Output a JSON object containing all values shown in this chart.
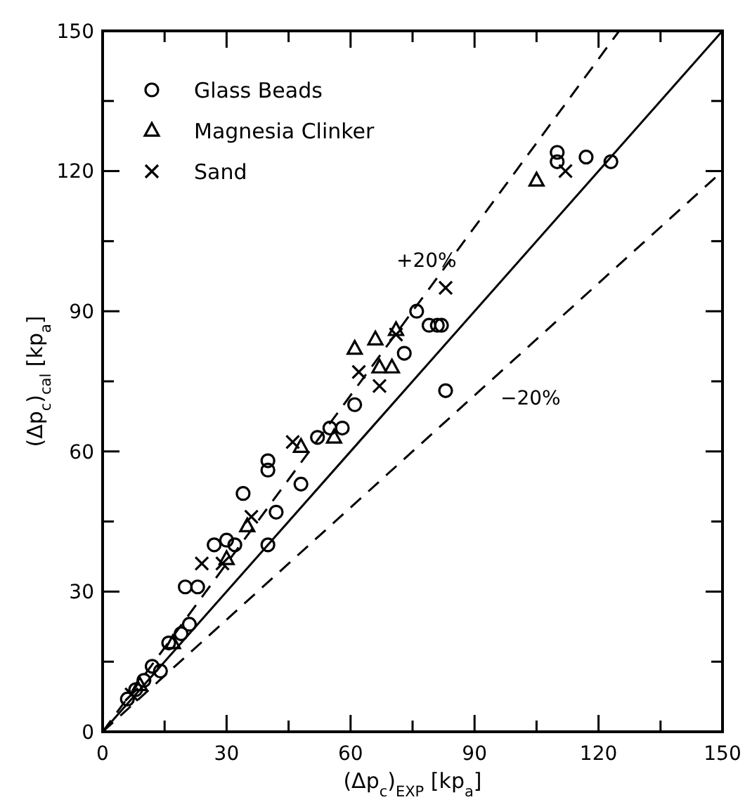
{
  "chart_data": {
    "type": "scatter",
    "xlabel": "(Δp$_{c}$)$_{EXP}$ [kp$_{a}$]",
    "ylabel": "(Δp$_{c}$)$_{cal}$ [kp$_{a}$]",
    "xlim": [
      0,
      150
    ],
    "ylim": [
      0,
      150
    ],
    "xticks": [
      0,
      {
        "value": 15,
        "label": null
      },
      30,
      {
        "value": 45,
        "label": null
      },
      60,
      {
        "value": 75,
        "label": null
      },
      90,
      {
        "value": 105,
        "label": null
      },
      120,
      {
        "value": 135,
        "label": null
      },
      150
    ],
    "yticks": [
      0,
      {
        "value": 15,
        "label": null
      },
      30,
      {
        "value": 45,
        "label": null
      },
      60,
      {
        "value": 75,
        "label": null
      },
      90,
      {
        "value": 105,
        "label": null
      },
      120,
      {
        "value": 135,
        "label": null
      },
      150
    ],
    "grid": false,
    "legend": "top left",
    "series": [
      {
        "name": "Glass Beads",
        "color": "#000000",
        "marker": "circle",
        "x": [
          6,
          8,
          10,
          12,
          14,
          16,
          19,
          21,
          20,
          23,
          27,
          30,
          32,
          34,
          40,
          40,
          40,
          48,
          42,
          52,
          55,
          58,
          61,
          73,
          76,
          79,
          81,
          82,
          83,
          110,
          110,
          117,
          123
        ],
        "values": [
          7,
          9,
          11,
          14,
          13,
          19,
          21,
          23,
          31,
          31,
          40,
          41,
          40,
          51,
          40,
          56,
          58,
          53,
          47,
          63,
          65,
          65,
          70,
          81,
          90,
          87,
          87,
          87,
          73,
          124,
          122,
          123,
          122
        ]
      },
      {
        "name": "Magnesia Clinker",
        "color": "#000000",
        "marker": "triangle",
        "x": [
          9,
          17,
          30,
          35,
          48,
          56,
          61,
          66,
          67,
          70,
          71,
          105
        ],
        "values": [
          10,
          19,
          37,
          44,
          61,
          63,
          82,
          84,
          78,
          78,
          86,
          118
        ]
      },
      {
        "name": "Sand",
        "color": "#000000",
        "marker": "cross",
        "x": [
          7,
          24,
          29,
          36,
          46,
          62,
          67,
          71,
          83,
          112
        ],
        "values": [
          8,
          36,
          36,
          46,
          62,
          77,
          74,
          85,
          95,
          120
        ]
      },
      {
        "type": "line",
        "color": "#000000",
        "line_style": "solid",
        "x": [
          0,
          150
        ],
        "values": [
          0,
          150
        ]
      },
      {
        "type": "line",
        "color": "#000000",
        "line_style": "dashed",
        "x": [
          0,
          125
        ],
        "values": [
          0,
          150
        ]
      },
      {
        "type": "line",
        "color": "#000000",
        "line_style": "dashed",
        "x": [
          0,
          150
        ],
        "values": [
          0,
          120
        ]
      }
    ],
    "annotations": [
      "+20%",
      "−20%"
    ]
  }
}
